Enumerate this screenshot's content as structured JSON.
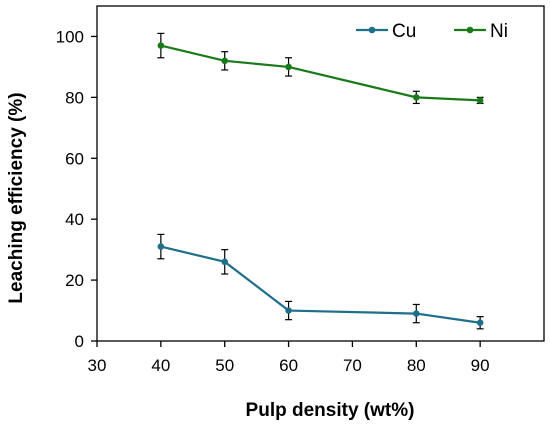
{
  "chart_data": {
    "type": "line",
    "title": "",
    "xlabel": "Pulp density (wt%)",
    "ylabel": "Leaching efficiency (%)",
    "xlim": [
      30,
      100
    ],
    "ylim": [
      0,
      110
    ],
    "x_ticks": [
      30,
      40,
      50,
      60,
      70,
      80,
      90
    ],
    "y_ticks": [
      0,
      20,
      40,
      60,
      80,
      100
    ],
    "grid": false,
    "legend_position": "top-right",
    "x": [
      40,
      50,
      60,
      80,
      90
    ],
    "series": [
      {
        "name": "Cu",
        "color": "#1f6f8b",
        "values": [
          31,
          26,
          10,
          9,
          6
        ],
        "errors": [
          4,
          4,
          3,
          3,
          2
        ]
      },
      {
        "name": "Ni",
        "color": "#1a7a1a",
        "values": [
          97,
          92,
          90,
          80,
          79
        ],
        "errors": [
          4,
          3,
          3,
          2,
          1
        ]
      }
    ]
  }
}
